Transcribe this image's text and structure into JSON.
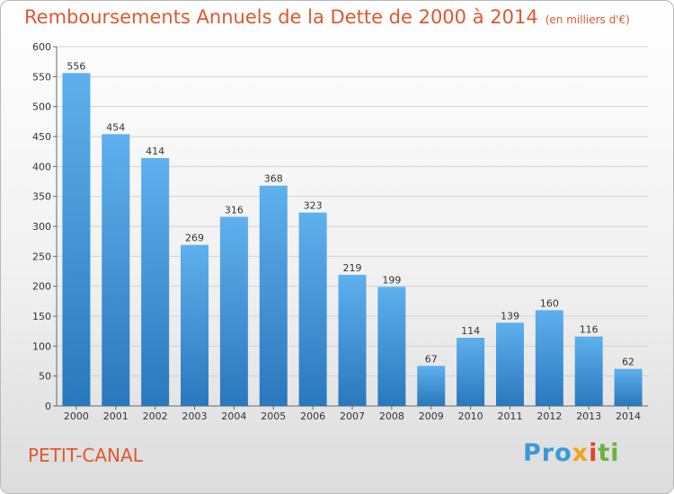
{
  "chart_data": {
    "type": "bar",
    "title": "Remboursements Annuels de la Dette de 2000 à 2014",
    "unit": "(en milliers d'€)",
    "categories": [
      "2000",
      "2001",
      "2002",
      "2003",
      "2004",
      "2005",
      "2006",
      "2007",
      "2008",
      "2009",
      "2010",
      "2011",
      "2012",
      "2013",
      "2014"
    ],
    "values": [
      556,
      454,
      414,
      269,
      316,
      368,
      323,
      219,
      199,
      67,
      114,
      139,
      160,
      116,
      62
    ],
    "ylim": [
      0,
      600
    ],
    "yticks": [
      0,
      50,
      100,
      150,
      200,
      250,
      300,
      350,
      400,
      450,
      500,
      550,
      600
    ],
    "xlabel": "",
    "ylabel": "",
    "grid": true,
    "bar_color": "#4a9fe0"
  },
  "footer": {
    "commune": "PETIT-CANAL",
    "logo": {
      "p1": "Pro",
      "p2": "x",
      "p3": "i",
      "p4": "ti"
    }
  }
}
